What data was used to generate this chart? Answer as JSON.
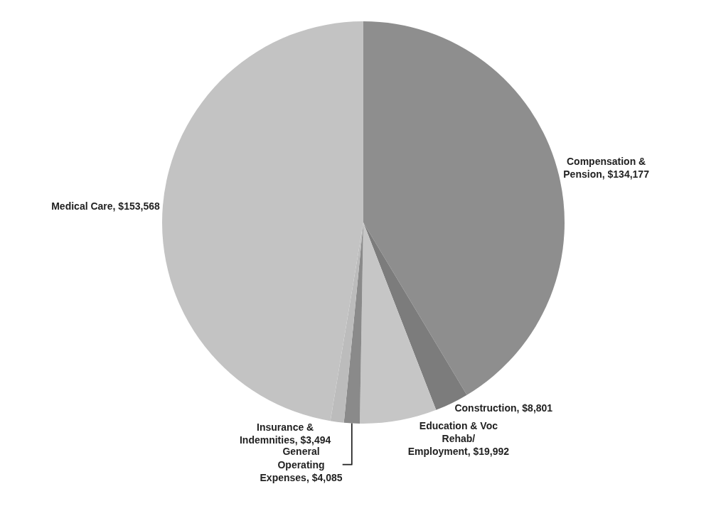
{
  "chart_data": {
    "type": "pie",
    "categories": [
      "Compensation & Pension",
      "Construction",
      "Education & Voc Rehab/ Employment",
      "General Operating Expenses",
      "Insurance & Indemnities",
      "Medical Care"
    ],
    "values": [
      134177,
      8801,
      19992,
      4085,
      3494,
      153568
    ],
    "value_labels": [
      "$134,177",
      "$8,801",
      "$19,992",
      "$4,085",
      "$3,494",
      "$153,568"
    ],
    "colors": [
      "#8e8e8e",
      "#7c7c7c",
      "#c6c6c6",
      "#8a8a8a",
      "#bcbcbc",
      "#c3c3c3"
    ],
    "legend": false
  }
}
